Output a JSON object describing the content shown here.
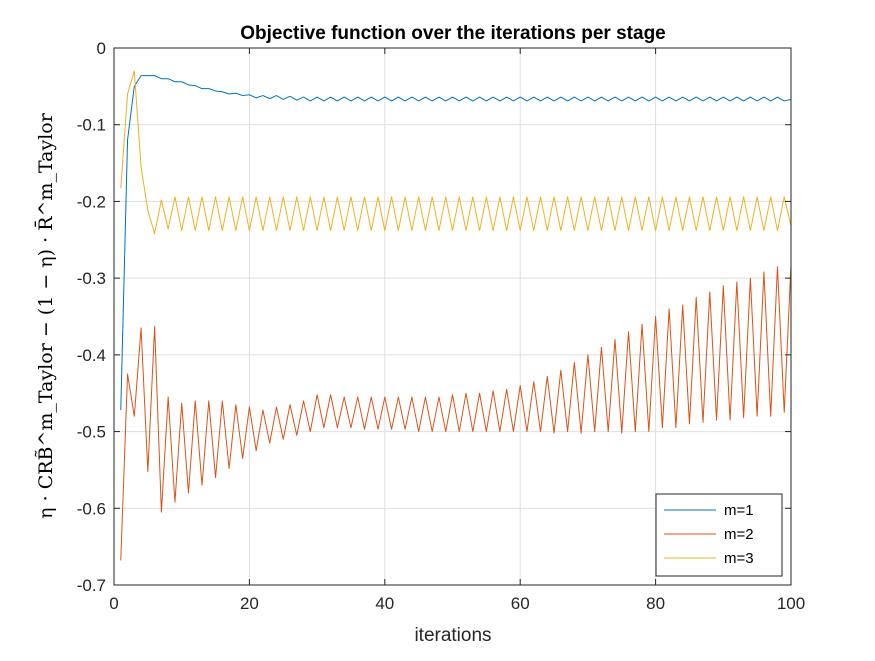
{
  "chart_data": {
    "type": "line",
    "title": "Objective function over the iterations per stage",
    "xlabel": "iterations",
    "ylabel": "η · CRB̃^m_Taylor − (1 − η) · R̄^m_Taylor",
    "xlim": [
      0,
      100
    ],
    "ylim": [
      -0.7,
      0
    ],
    "xticks": [
      0,
      20,
      40,
      60,
      80,
      100
    ],
    "xtick_labels": [
      "0",
      "20",
      "40",
      "60",
      "80",
      "100"
    ],
    "yticks": [
      0,
      -0.1,
      -0.2,
      -0.3,
      -0.4,
      -0.5,
      -0.6,
      -0.7
    ],
    "ytick_labels": [
      "0",
      "-0.1",
      "-0.2",
      "-0.3",
      "-0.4",
      "-0.5",
      "-0.6",
      "-0.7"
    ],
    "grid": true,
    "legend_position": "bottom-right",
    "series": [
      {
        "name": "m=1",
        "color": "#0072BD",
        "x": [
          1,
          2,
          3,
          4,
          5,
          6,
          7,
          8,
          9,
          10,
          11,
          12,
          13,
          14,
          15,
          16,
          17,
          18,
          19,
          20,
          21,
          22,
          23,
          24,
          25,
          26,
          27,
          28,
          29,
          30,
          31,
          32,
          33,
          34,
          35,
          36,
          37,
          38,
          39,
          40,
          41,
          42,
          43,
          44,
          45,
          46,
          47,
          48,
          49,
          50,
          51,
          52,
          53,
          54,
          55,
          56,
          57,
          58,
          59,
          60,
          61,
          62,
          63,
          64,
          65,
          66,
          67,
          68,
          69,
          70,
          71,
          72,
          73,
          74,
          75,
          76,
          77,
          78,
          79,
          80,
          81,
          82,
          83,
          84,
          85,
          86,
          87,
          88,
          89,
          90,
          91,
          92,
          93,
          94,
          95,
          96,
          97,
          98,
          99,
          100
        ],
        "y": [
          -0.472,
          -0.12,
          -0.05,
          -0.036,
          -0.036,
          -0.036,
          -0.04,
          -0.04,
          -0.044,
          -0.044,
          -0.048,
          -0.049,
          -0.053,
          -0.053,
          -0.056,
          -0.057,
          -0.06,
          -0.059,
          -0.062,
          -0.061,
          -0.065,
          -0.062,
          -0.066,
          -0.062,
          -0.067,
          -0.063,
          -0.068,
          -0.064,
          -0.069,
          -0.064,
          -0.069,
          -0.064,
          -0.069,
          -0.064,
          -0.069,
          -0.064,
          -0.069,
          -0.064,
          -0.069,
          -0.064,
          -0.069,
          -0.064,
          -0.069,
          -0.064,
          -0.069,
          -0.064,
          -0.069,
          -0.064,
          -0.069,
          -0.064,
          -0.069,
          -0.064,
          -0.069,
          -0.064,
          -0.069,
          -0.064,
          -0.069,
          -0.064,
          -0.069,
          -0.064,
          -0.069,
          -0.064,
          -0.069,
          -0.064,
          -0.069,
          -0.064,
          -0.069,
          -0.064,
          -0.069,
          -0.064,
          -0.069,
          -0.064,
          -0.069,
          -0.064,
          -0.069,
          -0.064,
          -0.069,
          -0.064,
          -0.069,
          -0.064,
          -0.069,
          -0.064,
          -0.069,
          -0.064,
          -0.069,
          -0.064,
          -0.069,
          -0.064,
          -0.069,
          -0.064,
          -0.069,
          -0.064,
          -0.069,
          -0.064,
          -0.069,
          -0.064,
          -0.069,
          -0.064,
          -0.069,
          -0.067
        ]
      },
      {
        "name": "m=2",
        "color": "#D95319",
        "x": [
          1,
          2,
          3,
          4,
          5,
          6,
          7,
          8,
          9,
          10,
          11,
          12,
          13,
          14,
          15,
          16,
          17,
          18,
          19,
          20,
          21,
          22,
          23,
          24,
          25,
          26,
          27,
          28,
          29,
          30,
          31,
          32,
          33,
          34,
          35,
          36,
          37,
          38,
          39,
          40,
          41,
          42,
          43,
          44,
          45,
          46,
          47,
          48,
          49,
          50,
          51,
          52,
          53,
          54,
          55,
          56,
          57,
          58,
          59,
          60,
          61,
          62,
          63,
          64,
          65,
          66,
          67,
          68,
          69,
          70,
          71,
          72,
          73,
          74,
          75,
          76,
          77,
          78,
          79,
          80,
          81,
          82,
          83,
          84,
          85,
          86,
          87,
          88,
          89,
          90,
          91,
          92,
          93,
          94,
          95,
          96,
          97,
          98,
          99,
          100
        ],
        "y": [
          -0.668,
          -0.425,
          -0.48,
          -0.365,
          -0.552,
          -0.363,
          -0.605,
          -0.455,
          -0.592,
          -0.463,
          -0.58,
          -0.46,
          -0.57,
          -0.46,
          -0.56,
          -0.46,
          -0.548,
          -0.465,
          -0.535,
          -0.468,
          -0.525,
          -0.472,
          -0.515,
          -0.468,
          -0.51,
          -0.465,
          -0.505,
          -0.46,
          -0.5,
          -0.452,
          -0.495,
          -0.452,
          -0.495,
          -0.455,
          -0.495,
          -0.455,
          -0.497,
          -0.455,
          -0.497,
          -0.455,
          -0.497,
          -0.455,
          -0.497,
          -0.455,
          -0.5,
          -0.455,
          -0.5,
          -0.455,
          -0.5,
          -0.452,
          -0.5,
          -0.45,
          -0.5,
          -0.45,
          -0.5,
          -0.447,
          -0.5,
          -0.445,
          -0.5,
          -0.44,
          -0.5,
          -0.435,
          -0.5,
          -0.428,
          -0.502,
          -0.42,
          -0.5,
          -0.41,
          -0.502,
          -0.4,
          -0.5,
          -0.39,
          -0.5,
          -0.38,
          -0.502,
          -0.37,
          -0.5,
          -0.36,
          -0.5,
          -0.35,
          -0.495,
          -0.34,
          -0.495,
          -0.335,
          -0.49,
          -0.325,
          -0.488,
          -0.318,
          -0.485,
          -0.31,
          -0.485,
          -0.305,
          -0.482,
          -0.3,
          -0.48,
          -0.292,
          -0.48,
          -0.285,
          -0.475,
          -0.282
        ]
      },
      {
        "name": "m=3",
        "color": "#EDB120",
        "x": [
          1,
          2,
          3,
          4,
          5,
          6,
          7,
          8,
          9,
          10,
          11,
          12,
          13,
          14,
          15,
          16,
          17,
          18,
          19,
          20,
          21,
          22,
          23,
          24,
          25,
          26,
          27,
          28,
          29,
          30,
          31,
          32,
          33,
          34,
          35,
          36,
          37,
          38,
          39,
          40,
          41,
          42,
          43,
          44,
          45,
          46,
          47,
          48,
          49,
          50,
          51,
          52,
          53,
          54,
          55,
          56,
          57,
          58,
          59,
          60,
          61,
          62,
          63,
          64,
          65,
          66,
          67,
          68,
          69,
          70,
          71,
          72,
          73,
          74,
          75,
          76,
          77,
          78,
          79,
          80,
          81,
          82,
          83,
          84,
          85,
          86,
          87,
          88,
          89,
          90,
          91,
          92,
          93,
          94,
          95,
          96,
          97,
          98,
          99,
          100
        ],
        "y": [
          -0.183,
          -0.06,
          -0.03,
          -0.155,
          -0.212,
          -0.242,
          -0.198,
          -0.236,
          -0.194,
          -0.238,
          -0.194,
          -0.238,
          -0.194,
          -0.238,
          -0.194,
          -0.238,
          -0.194,
          -0.238,
          -0.194,
          -0.238,
          -0.194,
          -0.238,
          -0.194,
          -0.238,
          -0.194,
          -0.238,
          -0.194,
          -0.238,
          -0.194,
          -0.238,
          -0.194,
          -0.238,
          -0.194,
          -0.238,
          -0.194,
          -0.238,
          -0.194,
          -0.238,
          -0.194,
          -0.238,
          -0.194,
          -0.238,
          -0.194,
          -0.238,
          -0.194,
          -0.238,
          -0.194,
          -0.238,
          -0.194,
          -0.238,
          -0.194,
          -0.238,
          -0.194,
          -0.238,
          -0.194,
          -0.238,
          -0.194,
          -0.238,
          -0.194,
          -0.238,
          -0.194,
          -0.238,
          -0.194,
          -0.238,
          -0.194,
          -0.238,
          -0.194,
          -0.238,
          -0.194,
          -0.238,
          -0.194,
          -0.238,
          -0.194,
          -0.238,
          -0.194,
          -0.238,
          -0.194,
          -0.238,
          -0.194,
          -0.238,
          -0.194,
          -0.238,
          -0.194,
          -0.238,
          -0.194,
          -0.238,
          -0.194,
          -0.238,
          -0.194,
          -0.238,
          -0.194,
          -0.238,
          -0.194,
          -0.238,
          -0.194,
          -0.238,
          -0.194,
          -0.238,
          -0.194,
          -0.232
        ]
      }
    ]
  }
}
